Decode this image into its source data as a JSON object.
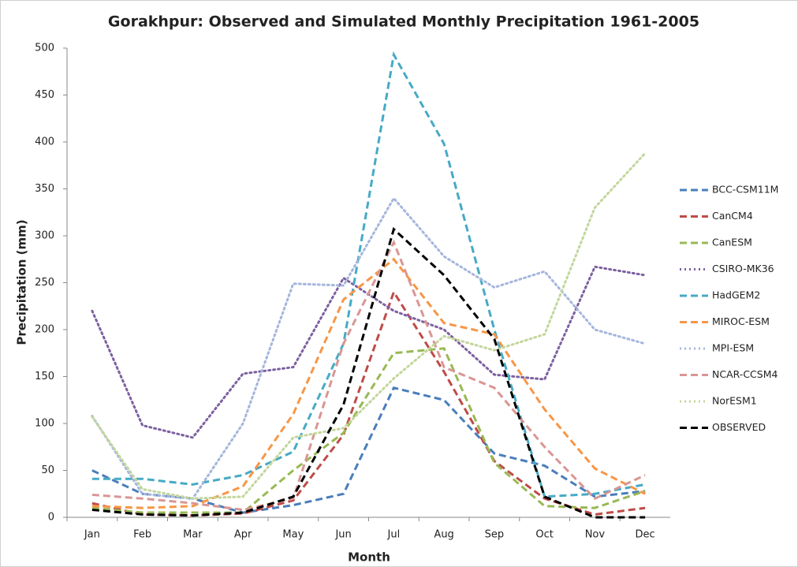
{
  "chart_data": {
    "type": "line",
    "title": "Gorakhpur: Observed and Simulated Monthly Precipitation 1961-2005",
    "x_label": "Month",
    "y_label": "Precipitation (mm)",
    "categories": [
      "Jan",
      "Feb",
      "Mar",
      "Apr",
      "May",
      "Jun",
      "Jul",
      "Aug",
      "Sep",
      "Oct",
      "Nov",
      "Dec"
    ],
    "ylim": [
      0,
      500
    ],
    "yticks": [
      0,
      50,
      100,
      150,
      200,
      250,
      300,
      350,
      400,
      450,
      500
    ],
    "grid": false,
    "legend": "right",
    "series": [
      {
        "name": "BCC-CSM11M",
        "color": "#4a7ebb",
        "dash": "dashed",
        "values": [
          50,
          25,
          20,
          5,
          13,
          25,
          138,
          125,
          68,
          55,
          22,
          28
        ]
      },
      {
        "name": "CanCM4",
        "color": "#be4b48",
        "dash": "dashed",
        "values": [
          15,
          3,
          2,
          4,
          18,
          88,
          240,
          155,
          60,
          20,
          3,
          10
        ]
      },
      {
        "name": "CanESM",
        "color": "#98b954",
        "dash": "dashed",
        "values": [
          10,
          5,
          5,
          5,
          50,
          90,
          175,
          180,
          58,
          12,
          10,
          28
        ]
      },
      {
        "name": "CSIRO-MK36",
        "color": "#7d60a0",
        "dash": "dotted",
        "values": [
          220,
          98,
          85,
          153,
          160,
          255,
          220,
          200,
          152,
          147,
          267,
          258
        ]
      },
      {
        "name": "HadGEM2",
        "color": "#46aac5",
        "dash": "dashed",
        "values": [
          41,
          41,
          35,
          45,
          70,
          185,
          493,
          398,
          200,
          22,
          25,
          35
        ]
      },
      {
        "name": "MIROC-ESM",
        "color": "#f79646",
        "dash": "dashed",
        "values": [
          12,
          10,
          12,
          33,
          110,
          232,
          275,
          207,
          195,
          115,
          52,
          25
        ]
      },
      {
        "name": "MPI-ESM",
        "color": "#a5b6dc",
        "dash": "dotted",
        "values": [
          108,
          25,
          20,
          100,
          249,
          247,
          340,
          278,
          245,
          262,
          200,
          185
        ]
      },
      {
        "name": "NCAR-CCSM4",
        "color": "#d99694",
        "dash": "dashed",
        "values": [
          24,
          20,
          15,
          8,
          20,
          185,
          293,
          160,
          138,
          75,
          20,
          45
        ]
      },
      {
        "name": "NorESM1",
        "color": "#c3d69b",
        "dash": "dotted",
        "values": [
          107,
          30,
          20,
          22,
          85,
          95,
          148,
          193,
          178,
          195,
          330,
          388
        ]
      },
      {
        "name": "OBSERVED",
        "color": "#000000",
        "dash": "dashed",
        "values": [
          8,
          3,
          2,
          5,
          22,
          120,
          307,
          258,
          190,
          22,
          0,
          0
        ]
      }
    ]
  }
}
